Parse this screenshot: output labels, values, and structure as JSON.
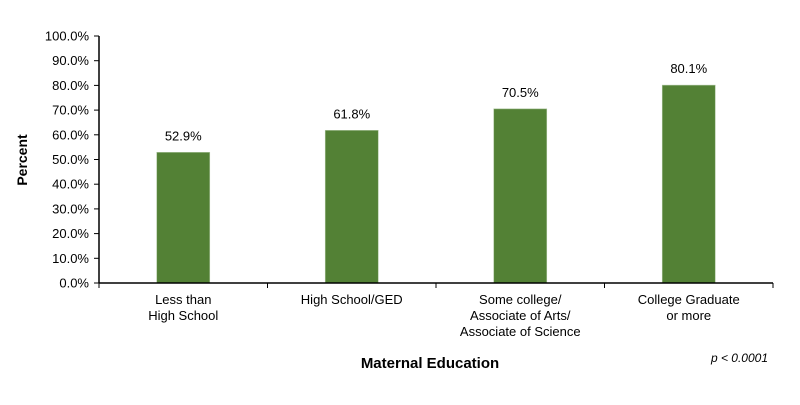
{
  "chart_data": {
    "type": "bar",
    "categories": [
      [
        "Less than",
        "High School"
      ],
      [
        "High School/GED"
      ],
      [
        "Some college/",
        "Associate of Arts/",
        "Associate of Science"
      ],
      [
        "College Graduate",
        "or more"
      ]
    ],
    "values": [
      52.9,
      61.8,
      70.5,
      80.1
    ],
    "data_labels": [
      "52.9%",
      "61.8%",
      "70.5%",
      "80.1%"
    ],
    "xlabel": "Maternal Education",
    "ylabel": "Percent",
    "ylim": [
      0,
      100
    ],
    "yticks": [
      "0.0%",
      "10.0%",
      "20.0%",
      "30.0%",
      "40.0%",
      "50.0%",
      "60.0%",
      "70.0%",
      "80.0%",
      "90.0%",
      "100.0%"
    ],
    "annotation": "p < 0.0001",
    "grid": false,
    "bar_color": "#538135"
  }
}
